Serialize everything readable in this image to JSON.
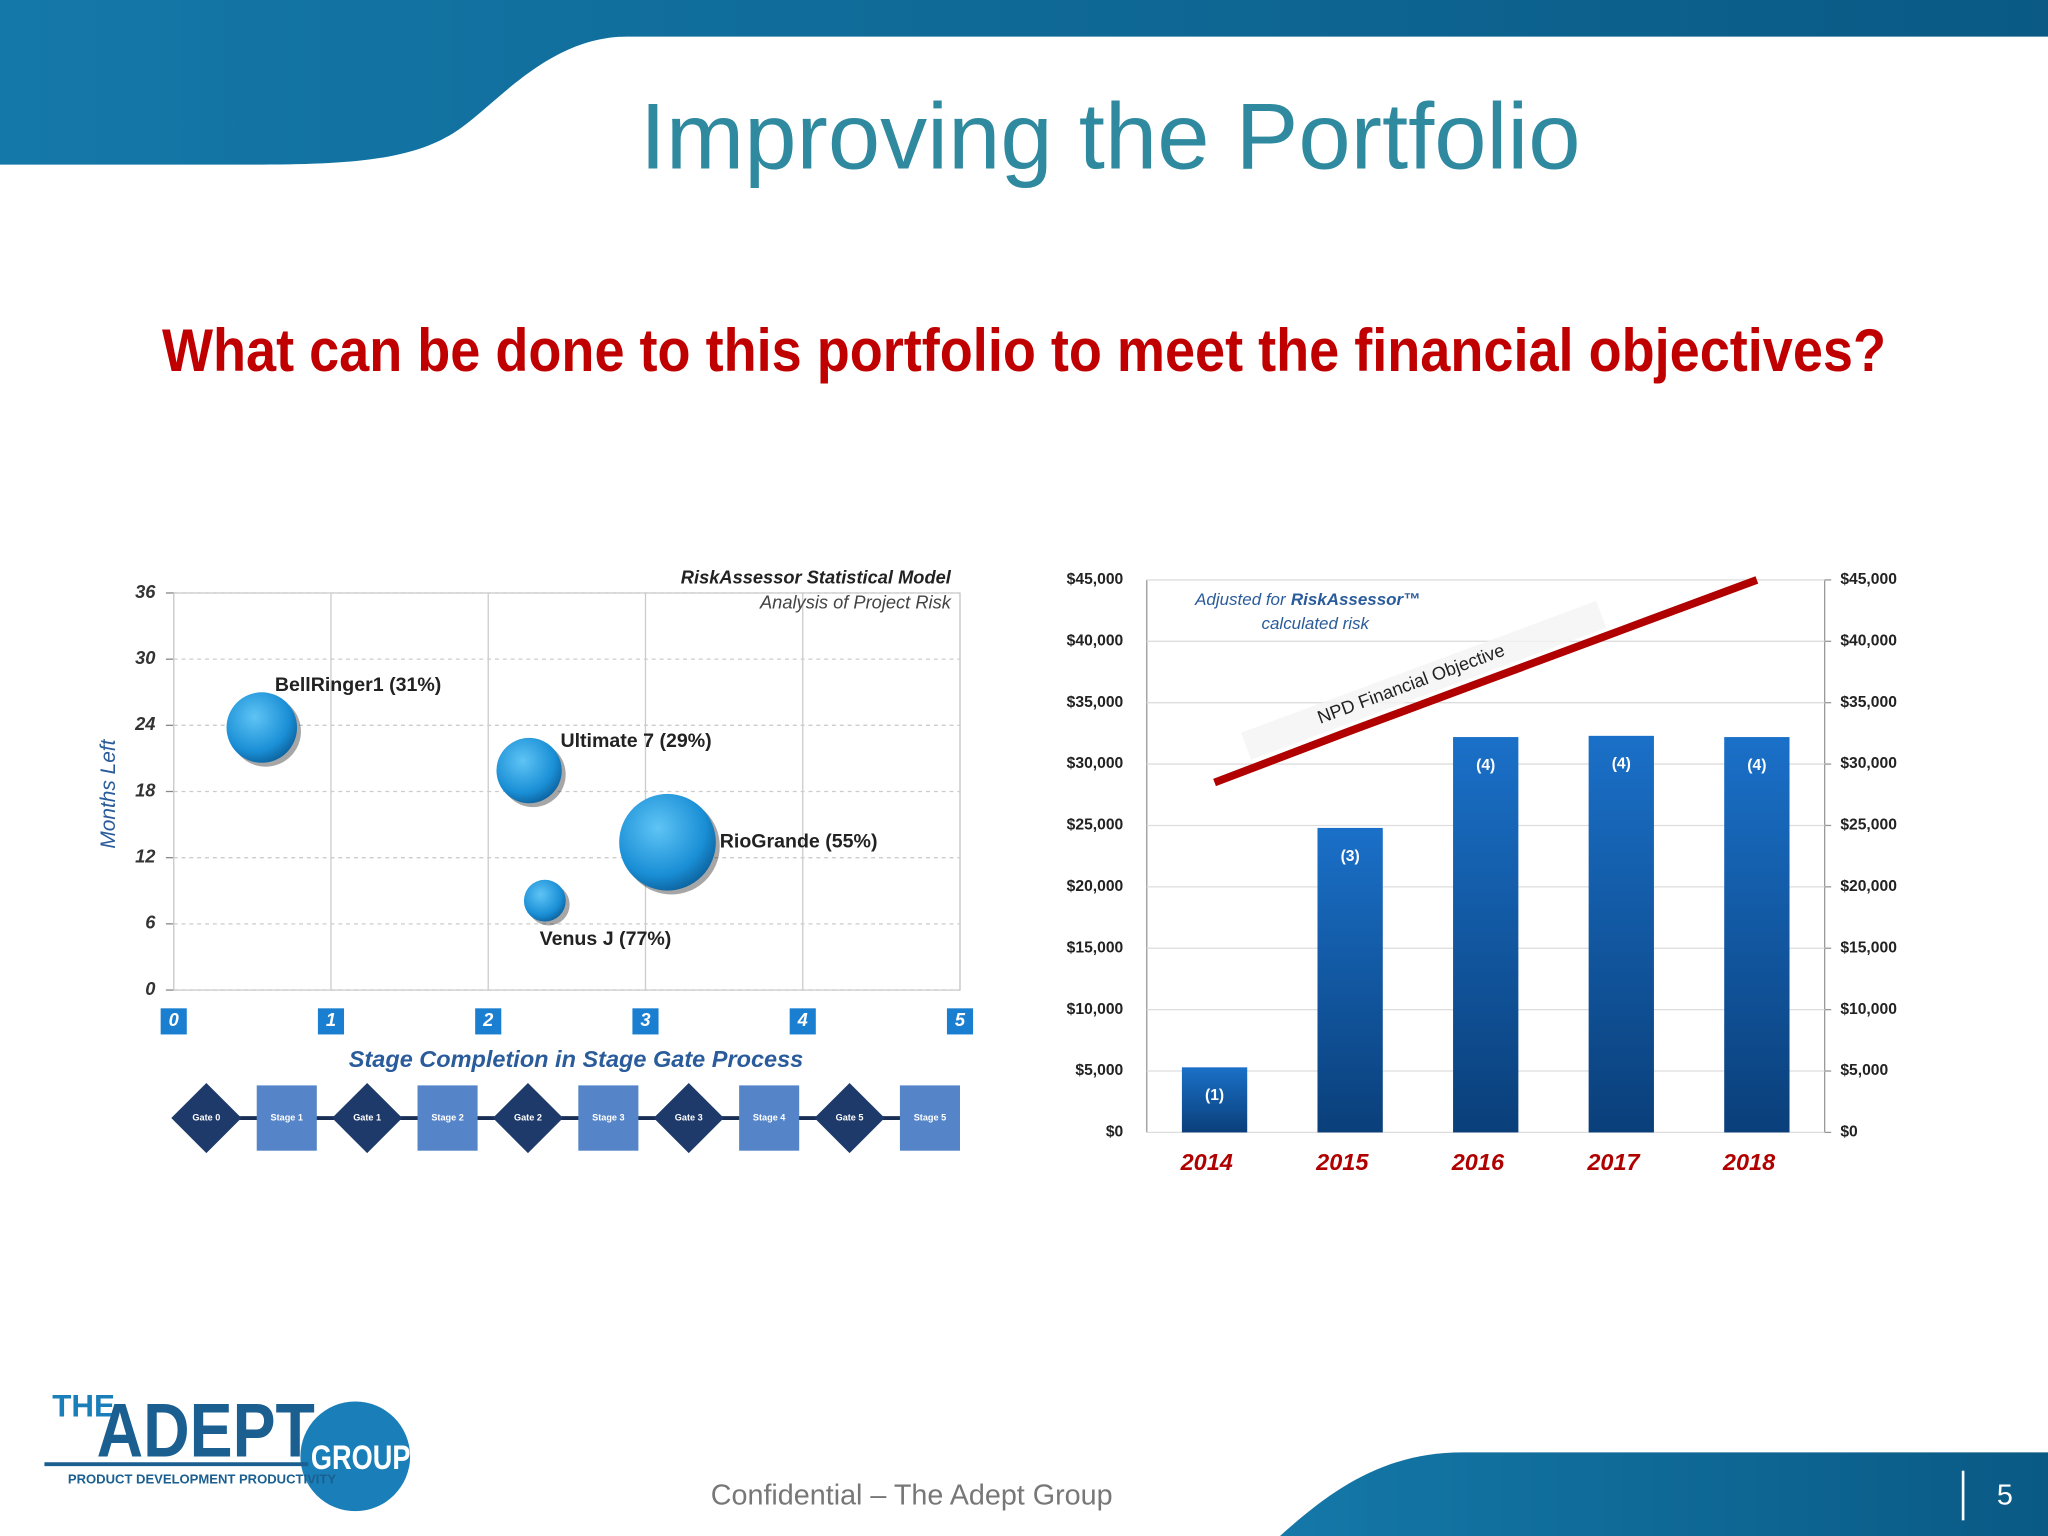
{
  "slide": {
    "title": "Improving the Portfolio",
    "question": "What can be done to this portfolio to meet the financial objectives?",
    "footer": "Confidential – The Adept Group",
    "page_number": "5",
    "logo": {
      "the": "THE",
      "adept": "ADEPT",
      "group": "GROUP",
      "tagline": "PRODUCT DEVELOPMENT PRODUCTIVITY"
    }
  },
  "chart_data": [
    {
      "type": "bubble",
      "title": "RiskAssessor Statistical Model",
      "subtitle": "Analysis of Project Risk",
      "x_label": "Stage Completion in Stage Gate Process",
      "y_label": "Months Left",
      "labels": [
        "BellRinger1 (31%)",
        "Ultimate 7 (29%)",
        "RioGrande (55%)",
        "Venus J (77%)"
      ],
      "x": [
        0.56,
        2.26,
        3.14,
        2.36
      ],
      "values": [
        23.8,
        19.9,
        13.4,
        8.1
      ],
      "sizes": [
        27,
        25,
        37,
        16
      ],
      "color": "#1a8fd6",
      "xlim": [
        0,
        5
      ],
      "xticks": [
        0,
        1,
        2,
        3,
        4,
        5
      ],
      "ylim": [
        0,
        36
      ],
      "yticks": [
        0,
        6,
        12,
        18,
        24,
        30,
        36
      ],
      "grid": true,
      "stage_gates": [
        "Gate 0",
        "Stage 1",
        "Gate 1",
        "Stage 2",
        "Gate 2",
        "Stage 3",
        "Gate 3",
        "Stage 4",
        "Gate 5",
        "Stage 5"
      ]
    },
    {
      "type": "bar",
      "categories": [
        "2014",
        "2015",
        "2016",
        "2017",
        "2018"
      ],
      "values": [
        5300,
        24800,
        32200,
        32300,
        32200
      ],
      "count_labels": [
        "(1)",
        "(3)",
        "(4)",
        "(4)",
        "(4)"
      ],
      "color": "#1565b8",
      "objective": {
        "name": "NPD Financial Objective",
        "color": "#b00000",
        "values": [
          28500,
          32700,
          36800,
          40900,
          45000
        ]
      },
      "note_prefix": "Adjusted for",
      "note_brand": "RiskAssessor™",
      "note_suffix": "calculated risk",
      "ylim": [
        0,
        45000
      ],
      "yticks": [
        {
          "value": 0,
          "label": "$0"
        },
        {
          "value": 5000,
          "label": "$5,000"
        },
        {
          "value": 10000,
          "label": "$10,000"
        },
        {
          "value": 15000,
          "label": "$15,000"
        },
        {
          "value": 20000,
          "label": "$20,000"
        },
        {
          "value": 25000,
          "label": "$25,000"
        },
        {
          "value": 30000,
          "label": "$30,000"
        },
        {
          "value": 35000,
          "label": "$35,000"
        },
        {
          "value": 40000,
          "label": "$40,000"
        },
        {
          "value": 45000,
          "label": "$45,000"
        }
      ],
      "y2lim": [
        0,
        45000
      ],
      "y2ticks": [
        {
          "value": 0,
          "label": "$0"
        },
        {
          "value": 5000,
          "label": "$5,000"
        },
        {
          "value": 10000,
          "label": "$10,000"
        },
        {
          "value": 15000,
          "label": "$15,000"
        },
        {
          "value": 20000,
          "label": "$20,000"
        },
        {
          "value": 25000,
          "label": "$25,000"
        },
        {
          "value": 30000,
          "label": "$30,000"
        },
        {
          "value": 35000,
          "label": "$35,000"
        },
        {
          "value": 40000,
          "label": "$40,000"
        },
        {
          "value": 45000,
          "label": "$45,000"
        }
      ],
      "grid": true
    }
  ]
}
